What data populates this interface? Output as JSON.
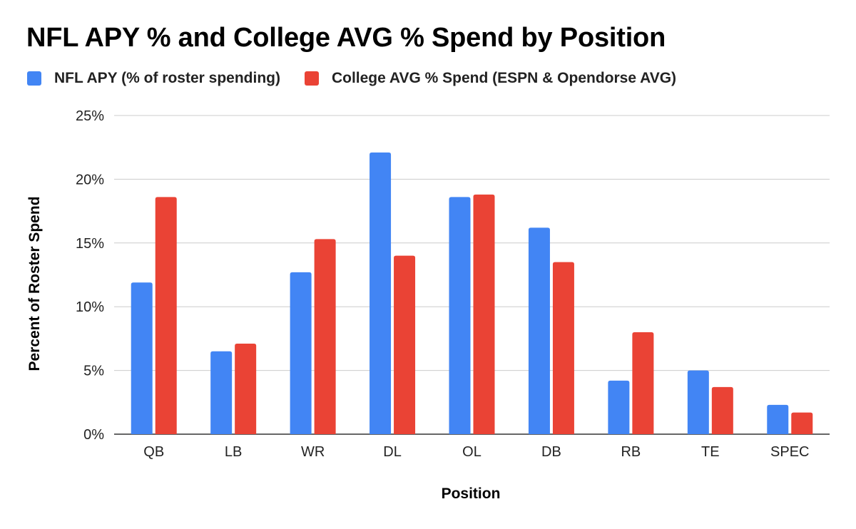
{
  "chart_data": {
    "type": "bar",
    "title": "NFL APY % and College AVG % Spend by Position",
    "xlabel": "Position",
    "ylabel": "Percent of Roster Spend",
    "ylim": [
      0,
      25
    ],
    "y_ticks": [
      "0%",
      "5%",
      "10%",
      "15%",
      "20%",
      "25%"
    ],
    "y_tick_values": [
      0,
      5,
      10,
      15,
      20,
      25
    ],
    "grid": true,
    "legend_position": "top-left",
    "categories": [
      "QB",
      "LB",
      "WR",
      "DL",
      "OL",
      "DB",
      "RB",
      "TE",
      "SPEC"
    ],
    "series": [
      {
        "name": "NFL APY (% of roster spending)",
        "color": "#4285f4",
        "values": [
          11.9,
          6.5,
          12.7,
          22.1,
          18.6,
          16.2,
          4.2,
          5.0,
          2.3
        ]
      },
      {
        "name": "College AVG % Spend (ESPN & Opendorse AVG)",
        "color": "#ea4335",
        "values": [
          18.6,
          7.1,
          15.3,
          14.0,
          18.8,
          13.5,
          8.0,
          3.7,
          1.7
        ]
      }
    ]
  }
}
